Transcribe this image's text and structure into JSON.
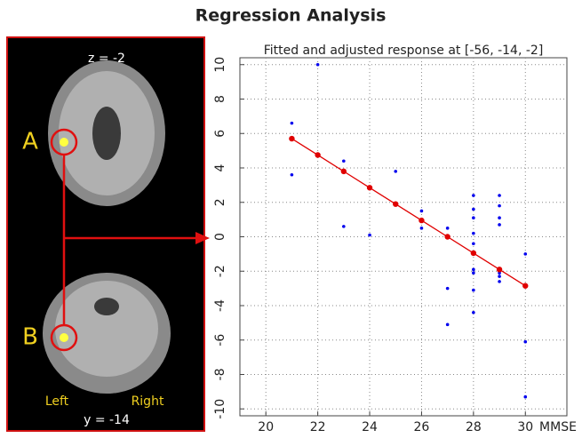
{
  "title": "Regression Analysis",
  "panel": {
    "slice_top": "z = -2",
    "label_a": "A",
    "label_b": "B",
    "left": "Left",
    "right": "Right",
    "slice_bottom": "y = -14"
  },
  "chart_data": {
    "type": "scatter",
    "title": "Fitted and adjusted response at [-56, -14, -2]",
    "xlabel": "MMSE",
    "xlim": [
      19,
      31.6
    ],
    "xticks": [
      20,
      22,
      24,
      26,
      28,
      30
    ],
    "ylim": [
      -10.4,
      10.4
    ],
    "yticks": [
      -10,
      -8,
      -6,
      -4,
      -2,
      0,
      2,
      4,
      6,
      8,
      10
    ],
    "grid": true,
    "series": [
      {
        "color": "#0000ee",
        "line": false,
        "x": [
          21,
          21,
          22,
          23,
          23,
          24,
          25,
          26,
          26,
          27,
          27,
          27,
          28,
          28,
          28,
          28,
          28,
          28,
          28,
          28,
          28,
          29,
          29,
          29,
          29,
          29,
          29,
          29,
          30,
          30,
          30
        ],
        "values": [
          6.6,
          3.6,
          10,
          4.4,
          0.6,
          0.1,
          3.8,
          1.5,
          0.5,
          0.5,
          -3,
          -5.1,
          2.4,
          1.6,
          1.1,
          0.2,
          -0.4,
          -1.9,
          -2.1,
          -3.1,
          -4.4,
          2.4,
          1.8,
          1.1,
          0.7,
          -2.1,
          -2.3,
          -2.6,
          -1,
          -6.1,
          -9.3
        ]
      },
      {
        "color": "#e00000",
        "line": true,
        "x": [
          21,
          22,
          23,
          24,
          25,
          26,
          27,
          28,
          29,
          30
        ],
        "values": [
          5.7,
          4.75,
          3.8,
          2.85,
          1.9,
          0.95,
          0,
          -0.95,
          -1.9,
          -2.85
        ]
      }
    ]
  }
}
